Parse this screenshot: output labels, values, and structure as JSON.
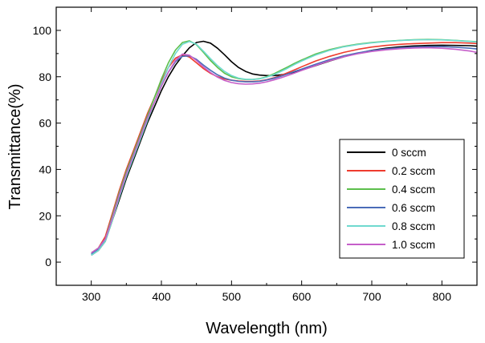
{
  "chart_data": {
    "type": "line",
    "title": "",
    "xlabel": "Wavelength (nm)",
    "ylabel": "Transmittance(%)",
    "xlim": [
      250,
      850
    ],
    "ylim": [
      -10,
      110
    ],
    "x_ticks": [
      300,
      400,
      500,
      600,
      700,
      800
    ],
    "y_ticks": [
      0,
      20,
      40,
      60,
      80,
      100
    ],
    "x_tick_labels": [
      "300",
      "400",
      "500",
      "600",
      "700",
      "800"
    ],
    "y_tick_labels": [
      "0",
      "20",
      "40",
      "60",
      "80",
      "100"
    ],
    "grid": false,
    "legend_position": "bottom-right",
    "series": [
      {
        "name": "0 sccm",
        "color": "#000000",
        "points": [
          [
            300,
            3
          ],
          [
            310,
            5
          ],
          [
            320,
            9
          ],
          [
            330,
            18
          ],
          [
            340,
            27
          ],
          [
            350,
            36
          ],
          [
            360,
            44
          ],
          [
            370,
            52
          ],
          [
            380,
            60
          ],
          [
            390,
            67
          ],
          [
            400,
            74
          ],
          [
            410,
            80
          ],
          [
            420,
            85
          ],
          [
            430,
            89
          ],
          [
            440,
            92.5
          ],
          [
            450,
            94.8
          ],
          [
            460,
            95.3
          ],
          [
            470,
            94.5
          ],
          [
            480,
            92.3
          ],
          [
            490,
            89.5
          ],
          [
            500,
            86.5
          ],
          [
            510,
            84
          ],
          [
            520,
            82.3
          ],
          [
            530,
            81.2
          ],
          [
            540,
            80.7
          ],
          [
            550,
            80.5
          ],
          [
            560,
            80.5
          ],
          [
            570,
            80.8
          ],
          [
            580,
            81.3
          ],
          [
            590,
            82
          ],
          [
            600,
            82.9
          ],
          [
            620,
            84.8
          ],
          [
            640,
            86.8
          ],
          [
            660,
            88.6
          ],
          [
            680,
            90.1
          ],
          [
            700,
            91.4
          ],
          [
            720,
            92.3
          ],
          [
            740,
            92.9
          ],
          [
            760,
            93.3
          ],
          [
            780,
            93.5
          ],
          [
            800,
            93.6
          ],
          [
            820,
            93.5
          ],
          [
            840,
            93.4
          ],
          [
            850,
            93.2
          ]
        ]
      },
      {
        "name": "0.2 sccm",
        "color": "#ee3b2e",
        "points": [
          [
            300,
            4
          ],
          [
            310,
            6
          ],
          [
            320,
            11
          ],
          [
            330,
            21
          ],
          [
            340,
            31
          ],
          [
            350,
            40
          ],
          [
            360,
            48
          ],
          [
            370,
            56
          ],
          [
            380,
            64
          ],
          [
            390,
            71
          ],
          [
            400,
            78
          ],
          [
            410,
            84
          ],
          [
            420,
            88
          ],
          [
            430,
            89.5
          ],
          [
            440,
            88.5
          ],
          [
            450,
            86
          ],
          [
            460,
            83.5
          ],
          [
            470,
            81.5
          ],
          [
            480,
            80
          ],
          [
            490,
            79
          ],
          [
            500,
            78.5
          ],
          [
            510,
            78.2
          ],
          [
            520,
            78
          ],
          [
            530,
            78
          ],
          [
            540,
            78.2
          ],
          [
            550,
            78.7
          ],
          [
            560,
            79.5
          ],
          [
            570,
            80.5
          ],
          [
            580,
            81.7
          ],
          [
            590,
            83
          ],
          [
            600,
            84.3
          ],
          [
            620,
            86.8
          ],
          [
            640,
            88.8
          ],
          [
            660,
            90.5
          ],
          [
            680,
            91.8
          ],
          [
            700,
            92.8
          ],
          [
            720,
            93.5
          ],
          [
            740,
            94
          ],
          [
            760,
            94.3
          ],
          [
            780,
            94.5
          ],
          [
            800,
            94.7
          ],
          [
            820,
            94.7
          ],
          [
            840,
            94.5
          ],
          [
            850,
            94.3
          ]
        ]
      },
      {
        "name": "0.4 sccm",
        "color": "#5cbf4c",
        "points": [
          [
            300,
            4
          ],
          [
            310,
            6
          ],
          [
            320,
            10
          ],
          [
            330,
            20
          ],
          [
            340,
            30
          ],
          [
            350,
            39
          ],
          [
            360,
            47
          ],
          [
            370,
            55
          ],
          [
            380,
            63
          ],
          [
            390,
            71
          ],
          [
            400,
            79
          ],
          [
            410,
            86
          ],
          [
            420,
            91.5
          ],
          [
            430,
            94.8
          ],
          [
            440,
            95.5
          ],
          [
            450,
            93.8
          ],
          [
            460,
            90.5
          ],
          [
            470,
            87
          ],
          [
            480,
            84
          ],
          [
            490,
            81.5
          ],
          [
            500,
            80
          ],
          [
            510,
            79.2
          ],
          [
            520,
            78.8
          ],
          [
            530,
            78.8
          ],
          [
            540,
            79.2
          ],
          [
            550,
            80
          ],
          [
            560,
            81.2
          ],
          [
            570,
            82.7
          ],
          [
            580,
            84.2
          ],
          [
            590,
            85.8
          ],
          [
            600,
            87.2
          ],
          [
            620,
            89.8
          ],
          [
            640,
            91.7
          ],
          [
            660,
            93.1
          ],
          [
            680,
            94.1
          ],
          [
            700,
            94.8
          ],
          [
            720,
            95.3
          ],
          [
            740,
            95.7
          ],
          [
            760,
            96
          ],
          [
            780,
            96.1
          ],
          [
            800,
            96
          ],
          [
            820,
            95.7
          ],
          [
            840,
            95.3
          ],
          [
            850,
            95.1
          ]
        ]
      },
      {
        "name": "0.6 sccm",
        "color": "#4a6cb8",
        "points": [
          [
            300,
            3.5
          ],
          [
            310,
            5.5
          ],
          [
            320,
            9.5
          ],
          [
            330,
            19
          ],
          [
            340,
            29
          ],
          [
            350,
            38
          ],
          [
            360,
            46
          ],
          [
            370,
            54
          ],
          [
            380,
            62
          ],
          [
            390,
            69
          ],
          [
            400,
            76
          ],
          [
            410,
            82
          ],
          [
            420,
            86.5
          ],
          [
            430,
            88.8
          ],
          [
            440,
            89
          ],
          [
            450,
            87.5
          ],
          [
            460,
            85
          ],
          [
            470,
            82.8
          ],
          [
            480,
            80.8
          ],
          [
            490,
            79.4
          ],
          [
            500,
            78.5
          ],
          [
            510,
            78
          ],
          [
            520,
            77.8
          ],
          [
            530,
            77.8
          ],
          [
            540,
            78
          ],
          [
            550,
            78.6
          ],
          [
            560,
            79.3
          ],
          [
            570,
            80.2
          ],
          [
            580,
            81.2
          ],
          [
            590,
            82.3
          ],
          [
            600,
            83.3
          ],
          [
            620,
            85.4
          ],
          [
            640,
            87.4
          ],
          [
            660,
            89
          ],
          [
            680,
            90.3
          ],
          [
            700,
            91.3
          ],
          [
            720,
            92
          ],
          [
            740,
            92.5
          ],
          [
            760,
            92.8
          ],
          [
            780,
            93
          ],
          [
            800,
            93
          ],
          [
            820,
            92.7
          ],
          [
            840,
            92.3
          ],
          [
            850,
            92
          ]
        ]
      },
      {
        "name": "0.8 sccm",
        "color": "#6fd9cf",
        "points": [
          [
            300,
            3
          ],
          [
            310,
            5
          ],
          [
            320,
            9
          ],
          [
            330,
            18
          ],
          [
            340,
            28
          ],
          [
            350,
            37
          ],
          [
            360,
            45
          ],
          [
            370,
            53
          ],
          [
            380,
            61
          ],
          [
            390,
            69
          ],
          [
            400,
            77
          ],
          [
            410,
            84
          ],
          [
            420,
            90
          ],
          [
            430,
            94
          ],
          [
            440,
            95.2
          ],
          [
            450,
            94
          ],
          [
            460,
            91
          ],
          [
            470,
            87.8
          ],
          [
            480,
            84.8
          ],
          [
            490,
            82.3
          ],
          [
            500,
            80.5
          ],
          [
            510,
            79.4
          ],
          [
            520,
            78.9
          ],
          [
            530,
            78.8
          ],
          [
            540,
            79.1
          ],
          [
            550,
            79.8
          ],
          [
            560,
            80.8
          ],
          [
            570,
            82.2
          ],
          [
            580,
            83.7
          ],
          [
            590,
            85.3
          ],
          [
            600,
            86.8
          ],
          [
            620,
            89.4
          ],
          [
            640,
            91.4
          ],
          [
            660,
            92.9
          ],
          [
            680,
            93.9
          ],
          [
            700,
            94.6
          ],
          [
            720,
            95.2
          ],
          [
            740,
            95.6
          ],
          [
            760,
            95.9
          ],
          [
            780,
            96
          ],
          [
            800,
            95.9
          ],
          [
            820,
            95.6
          ],
          [
            840,
            95.2
          ],
          [
            850,
            95
          ]
        ]
      },
      {
        "name": "1.0 sccm",
        "color": "#c65fc9",
        "points": [
          [
            300,
            4
          ],
          [
            310,
            6
          ],
          [
            320,
            10
          ],
          [
            330,
            19
          ],
          [
            340,
            29
          ],
          [
            350,
            38
          ],
          [
            360,
            46
          ],
          [
            370,
            54
          ],
          [
            380,
            62
          ],
          [
            390,
            69
          ],
          [
            400,
            76
          ],
          [
            410,
            82
          ],
          [
            420,
            87
          ],
          [
            430,
            89.8
          ],
          [
            440,
            89.3
          ],
          [
            450,
            87
          ],
          [
            460,
            84.2
          ],
          [
            470,
            81.8
          ],
          [
            480,
            79.8
          ],
          [
            490,
            78.4
          ],
          [
            500,
            77.5
          ],
          [
            510,
            77
          ],
          [
            520,
            76.8
          ],
          [
            530,
            76.9
          ],
          [
            540,
            77.2
          ],
          [
            550,
            77.8
          ],
          [
            560,
            78.6
          ],
          [
            570,
            79.5
          ],
          [
            580,
            80.5
          ],
          [
            590,
            81.6
          ],
          [
            600,
            82.7
          ],
          [
            620,
            84.9
          ],
          [
            640,
            86.9
          ],
          [
            660,
            88.6
          ],
          [
            680,
            89.9
          ],
          [
            700,
            90.9
          ],
          [
            720,
            91.6
          ],
          [
            740,
            92.1
          ],
          [
            760,
            92.4
          ],
          [
            780,
            92.5
          ],
          [
            800,
            92.3
          ],
          [
            820,
            91.8
          ],
          [
            840,
            91.1
          ],
          [
            850,
            90.5
          ]
        ]
      }
    ]
  }
}
